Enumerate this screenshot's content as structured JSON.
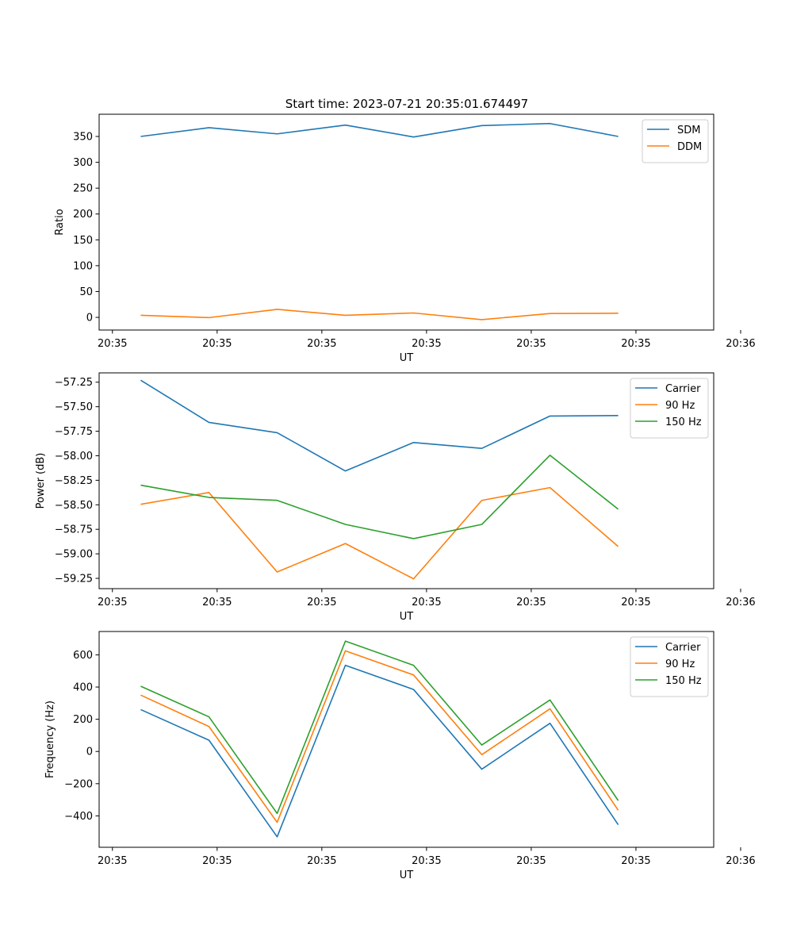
{
  "figure": {
    "title": "Start time: 2023-07-21 20:35:01.674497"
  },
  "colors": {
    "blue": "#1f77b4",
    "orange": "#ff7f0e",
    "green": "#2ca02c"
  },
  "chart_data": [
    {
      "type": "line",
      "title": "Start time: 2023-07-21 20:35:01.674497",
      "xlabel": "UT",
      "ylabel": "Ratio",
      "x": [
        1,
        2,
        3,
        4,
        5,
        6,
        7,
        8
      ],
      "xlim": [
        0.39,
        9.4
      ],
      "x_ticks": [
        0.585,
        2.12,
        3.655,
        5.19,
        6.725,
        8.26,
        9.795
      ],
      "x_tick_labels": [
        "20:35",
        "20:35",
        "20:35",
        "20:35",
        "20:35",
        "20:35",
        "20:36"
      ],
      "ylim": [
        -24.5,
        393
      ],
      "y_ticks": [
        0,
        50,
        100,
        150,
        200,
        250,
        300,
        350
      ],
      "series": [
        {
          "name": "SDM",
          "color": "#1f77b4",
          "values": [
            350,
            367,
            355,
            372,
            349,
            371,
            375,
            350
          ]
        },
        {
          "name": "DDM",
          "color": "#ff7f0e",
          "values": [
            4,
            -0.5,
            15.5,
            4,
            8.5,
            -4.5,
            7.5,
            8
          ]
        }
      ],
      "legend": "top-right"
    },
    {
      "type": "line",
      "title": "",
      "xlabel": "UT",
      "ylabel": "Power (dB)",
      "x": [
        1,
        2,
        3,
        4,
        5,
        6,
        7,
        8
      ],
      "xlim": [
        0.39,
        9.4
      ],
      "x_ticks": [
        0.585,
        2.12,
        3.655,
        5.19,
        6.725,
        8.26,
        9.795
      ],
      "x_tick_labels": [
        "20:35",
        "20:35",
        "20:35",
        "20:35",
        "20:35",
        "20:35",
        "20:36"
      ],
      "ylim": [
        -59.355,
        -57.155
      ],
      "y_ticks": [
        -59.25,
        -59.0,
        -58.75,
        -58.5,
        -58.25,
        -58.0,
        -57.75,
        -57.5,
        -57.25
      ],
      "y_tick_labels": [
        "−59.25",
        "−59.00",
        "−58.75",
        "−58.50",
        "−58.25",
        "−58.00",
        "−57.75",
        "−57.50",
        "−57.25"
      ],
      "series": [
        {
          "name": "Carrier",
          "color": "#1f77b4",
          "values": [
            -57.23,
            -57.66,
            -57.765,
            -58.155,
            -57.865,
            -57.925,
            -57.595,
            -57.59
          ]
        },
        {
          "name": "90 Hz",
          "color": "#ff7f0e",
          "values": [
            -58.495,
            -58.375,
            -59.185,
            -58.895,
            -59.255,
            -58.455,
            -58.325,
            -58.925
          ]
        },
        {
          "name": "150 Hz",
          "color": "#2ca02c",
          "values": [
            -58.3,
            -58.425,
            -58.455,
            -58.7,
            -58.845,
            -58.7,
            -57.995,
            -58.545
          ]
        }
      ],
      "legend": "top-right"
    },
    {
      "type": "line",
      "title": "",
      "xlabel": "UT",
      "ylabel": "Frequency (Hz)",
      "x": [
        1,
        2,
        3,
        4,
        5,
        6,
        7,
        8
      ],
      "xlim": [
        0.39,
        9.4
      ],
      "x_ticks": [
        0.585,
        2.12,
        3.655,
        5.19,
        6.725,
        8.26,
        9.795
      ],
      "x_tick_labels": [
        "20:35",
        "20:35",
        "20:35",
        "20:35",
        "20:35",
        "20:35",
        "20:36"
      ],
      "ylim": [
        -595,
        745
      ],
      "y_ticks": [
        -400,
        -200,
        0,
        200,
        400,
        600
      ],
      "y_tick_labels": [
        "−400",
        "−200",
        "0",
        "200",
        "400",
        "600"
      ],
      "series": [
        {
          "name": "Carrier",
          "color": "#1f77b4",
          "values": [
            260,
            70,
            -530,
            535,
            385,
            -110,
            175,
            -455
          ]
        },
        {
          "name": "90 Hz",
          "color": "#ff7f0e",
          "values": [
            350,
            155,
            -440,
            625,
            475,
            -20,
            265,
            -365
          ]
        },
        {
          "name": "150 Hz",
          "color": "#2ca02c",
          "values": [
            405,
            215,
            -385,
            685,
            535,
            40,
            320,
            -305
          ]
        }
      ],
      "legend": "top-right"
    }
  ]
}
